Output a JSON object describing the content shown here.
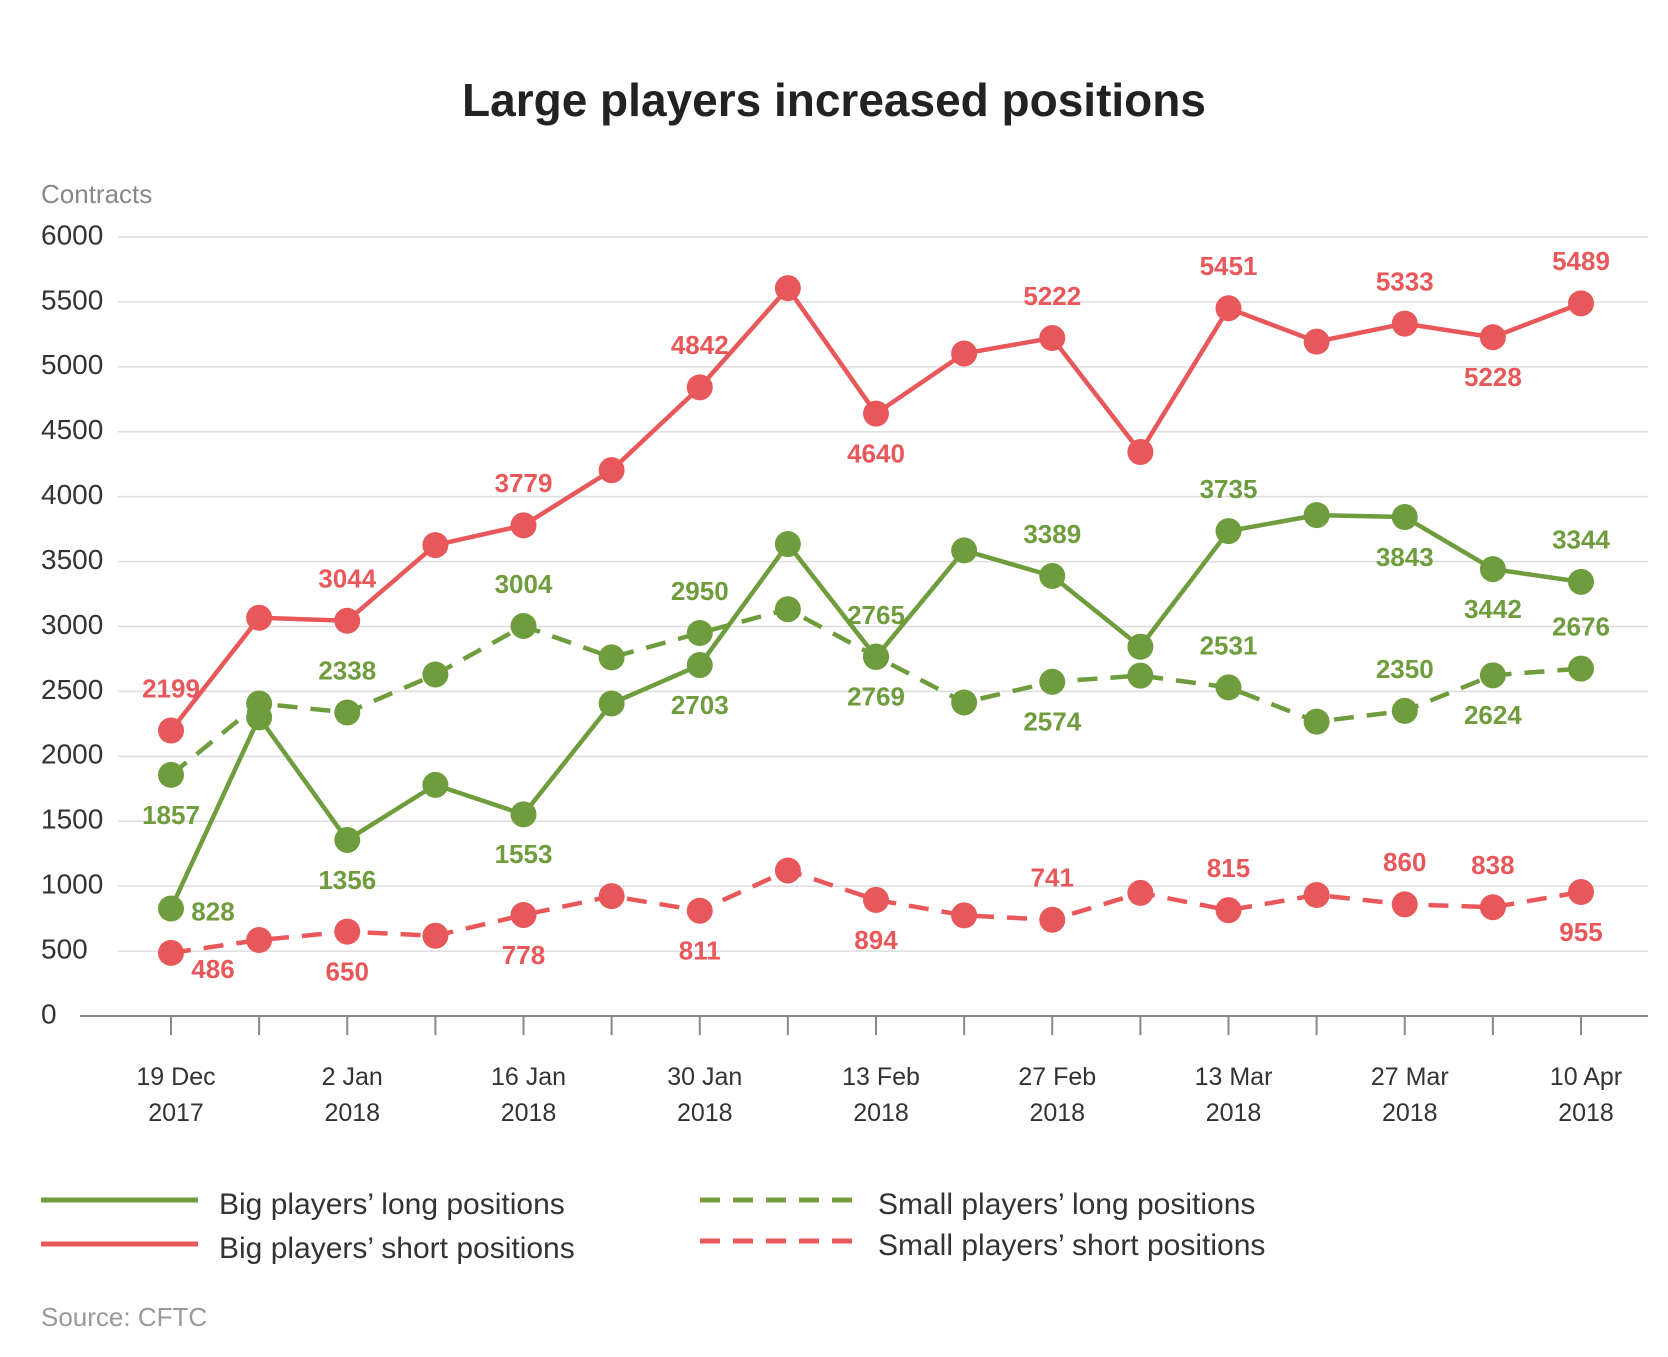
{
  "chart_data": {
    "type": "line",
    "title": "Large players increased positions",
    "y_label": "Contracts",
    "source": "Source: CFTC",
    "categories": [
      "19 Dec\n2017",
      null,
      "2 Jan\n2018",
      null,
      "16 Jan\n2018",
      null,
      "30 Jan\n2018",
      null,
      "13 Feb\n2018",
      null,
      "27 Feb\n2018",
      null,
      "13 Mar\n2018",
      null,
      "27 Mar\n2018",
      null,
      "10 Apr\n2018"
    ],
    "ylim": [
      0,
      6000
    ],
    "yticks": [
      0,
      500,
      1000,
      1500,
      2000,
      2500,
      3000,
      3500,
      4000,
      4500,
      5000,
      5500,
      6000
    ],
    "grid": true,
    "series": [
      {
        "name": "Big players’ long positions",
        "color": "#6f9c3d",
        "line_style": "solid",
        "values": [
          828,
          2300,
          1356,
          1780,
          1553,
          2407,
          2703,
          3635,
          2765,
          3586,
          3389,
          2844,
          3735,
          3858,
          3843,
          3442,
          3344
        ],
        "value_labels": [
          "828",
          null,
          "1356",
          null,
          "1553",
          null,
          "2703",
          null,
          "2765",
          null,
          "3389",
          null,
          "3735",
          null,
          "3843",
          "3442",
          "3344"
        ]
      },
      {
        "name": "Big players’ short positions",
        "color": "#e8575a",
        "line_style": "solid",
        "values": [
          2199,
          3067,
          3044,
          3627,
          3779,
          4204,
          4842,
          5606,
          4640,
          5103,
          5222,
          4344,
          5451,
          5194,
          5333,
          5228,
          5489
        ],
        "value_labels": [
          "2199",
          null,
          "3044",
          null,
          "3779",
          null,
          "4842",
          null,
          "4640",
          null,
          "5222",
          null,
          "5451",
          null,
          "5333",
          "5228",
          "5489"
        ]
      },
      {
        "name": "Small players’ long positions",
        "color": "#6f9c3d",
        "line_style": "dashed",
        "values": [
          1857,
          2407,
          2338,
          2630,
          3004,
          2762,
          2950,
          3133,
          2769,
          2415,
          2574,
          2622,
          2531,
          2267,
          2350,
          2624,
          2676
        ],
        "value_labels": [
          "1857",
          null,
          "2338",
          null,
          "3004",
          null,
          "2950",
          null,
          "2769",
          null,
          "2574",
          null,
          "2531",
          null,
          "2350",
          "2624",
          "2676"
        ]
      },
      {
        "name": "Small players’ short positions",
        "color": "#e8575a",
        "line_style": "dashed",
        "values": [
          486,
          585,
          650,
          618,
          778,
          923,
          811,
          1121,
          894,
          775,
          741,
          948,
          815,
          932,
          860,
          838,
          955
        ],
        "value_labels": [
          "486",
          null,
          "650",
          null,
          "778",
          null,
          "811",
          null,
          "894",
          null,
          "741",
          null,
          "815",
          null,
          "860",
          "838",
          "955"
        ]
      }
    ]
  }
}
